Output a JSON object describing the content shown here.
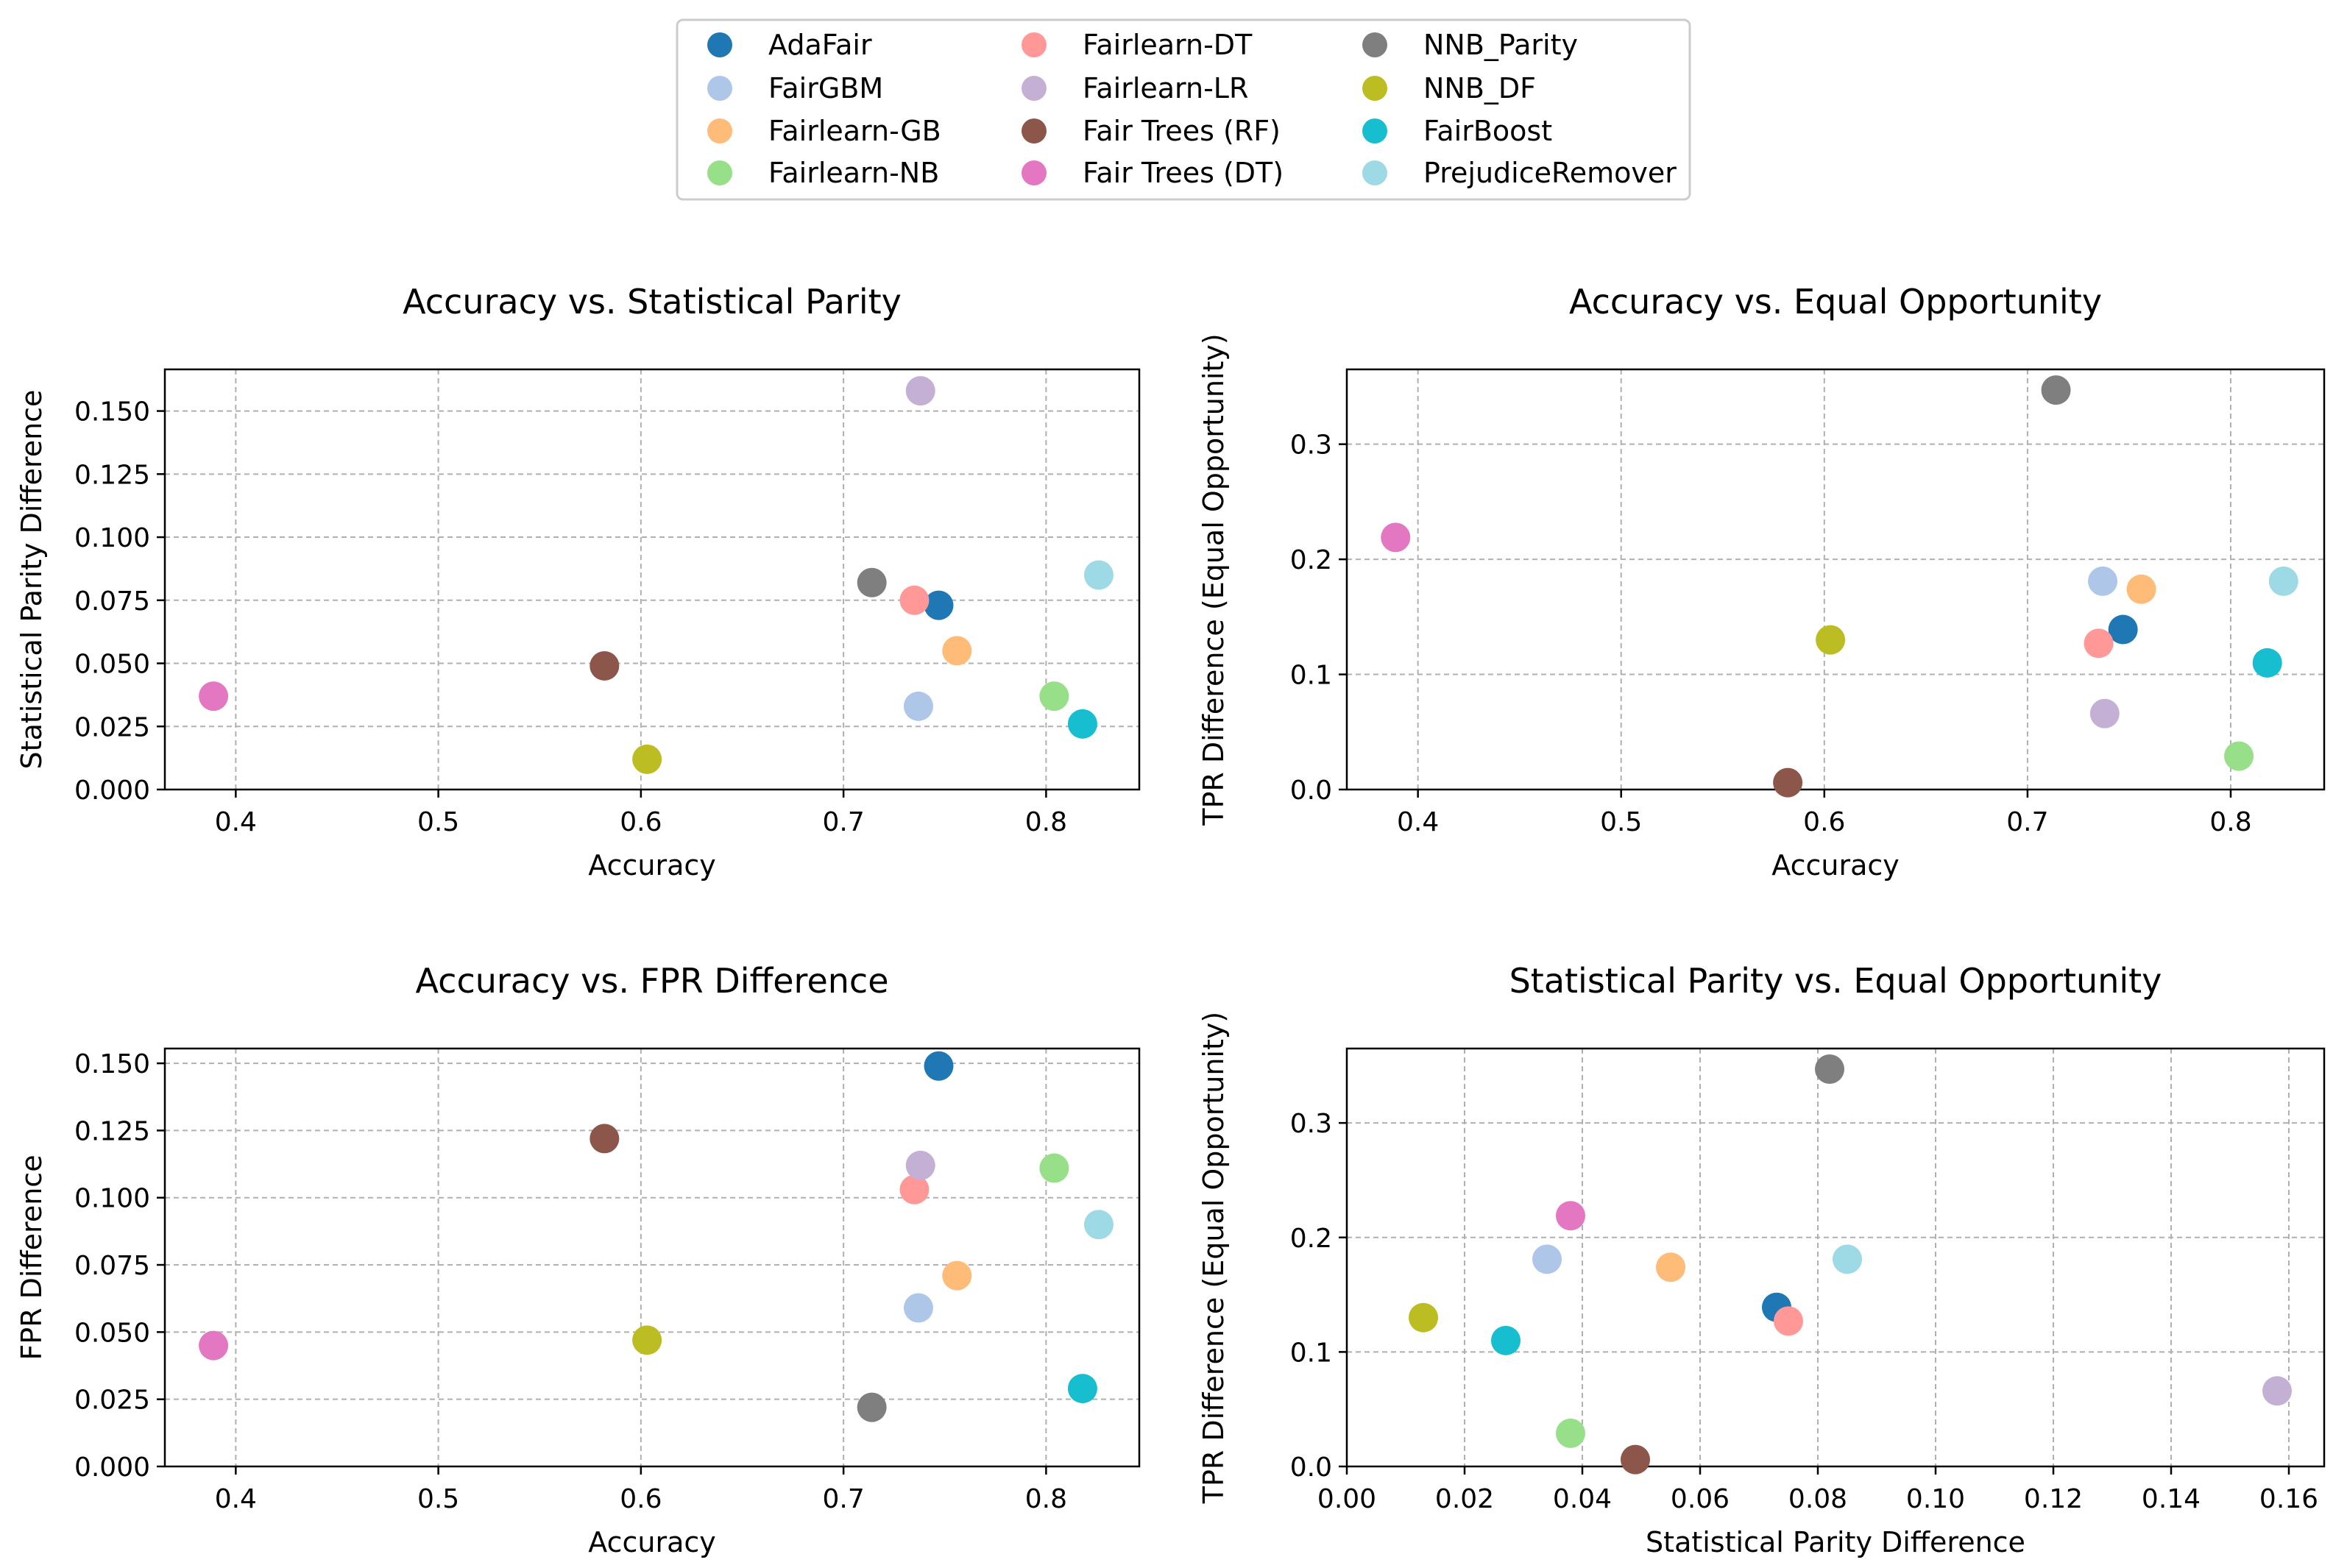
{
  "legend": {
    "entries": [
      {
        "name": "AdaFair",
        "color": "#1f77b4"
      },
      {
        "name": "FairGBM",
        "color": "#aec7e8"
      },
      {
        "name": "Fairlearn-GB",
        "color": "#ffbb78"
      },
      {
        "name": "Fairlearn-NB",
        "color": "#98df8a"
      },
      {
        "name": "Fairlearn-DT",
        "color": "#ff9896"
      },
      {
        "name": "Fairlearn-LR",
        "color": "#c5b0d5"
      },
      {
        "name": "Fair Trees (RF)",
        "color": "#8c564b"
      },
      {
        "name": "Fair Trees (DT)",
        "color": "#e377c2"
      },
      {
        "name": "NNB_Parity",
        "color": "#7f7f7f"
      },
      {
        "name": "NNB_DF",
        "color": "#bcbd22"
      },
      {
        "name": "FairBoost",
        "color": "#17becf"
      },
      {
        "name": "PrejudiceRemover",
        "color": "#9edae5"
      }
    ]
  },
  "chart_data": [
    {
      "type": "scatter",
      "title": "Accuracy vs. Statistical Parity",
      "xlabel": "Accuracy",
      "ylabel": "Statistical Parity Difference",
      "xlim": [
        0.365,
        0.846
      ],
      "ylim": [
        0.0,
        0.1665
      ],
      "xticks": [
        "0.4",
        "0.5",
        "0.6",
        "0.7",
        "0.8"
      ],
      "yticks": [
        "0.000",
        "0.025",
        "0.050",
        "0.075",
        "0.100",
        "0.125",
        "0.150"
      ],
      "grid": true,
      "points": [
        {
          "series": "AdaFair",
          "x": 0.747,
          "y": 0.073
        },
        {
          "series": "FairGBM",
          "x": 0.737,
          "y": 0.033
        },
        {
          "series": "Fairlearn-GB",
          "x": 0.756,
          "y": 0.055
        },
        {
          "series": "Fairlearn-NB",
          "x": 0.804,
          "y": 0.037
        },
        {
          "series": "Fairlearn-DT",
          "x": 0.735,
          "y": 0.075
        },
        {
          "series": "Fairlearn-LR",
          "x": 0.738,
          "y": 0.158
        },
        {
          "series": "Fair Trees (RF)",
          "x": 0.582,
          "y": 0.049
        },
        {
          "series": "Fair Trees (DT)",
          "x": 0.389,
          "y": 0.037
        },
        {
          "series": "NNB_Parity",
          "x": 0.714,
          "y": 0.082
        },
        {
          "series": "NNB_DF",
          "x": 0.603,
          "y": 0.012
        },
        {
          "series": "FairBoost",
          "x": 0.818,
          "y": 0.026
        },
        {
          "series": "PrejudiceRemover",
          "x": 0.826,
          "y": 0.085
        }
      ]
    },
    {
      "type": "scatter",
      "title": "Accuracy vs. Equal Opportunity",
      "xlabel": "Accuracy",
      "ylabel": "TPR Difference (Equal Opportunity)",
      "xlim": [
        0.365,
        0.846
      ],
      "ylim": [
        0.0,
        0.365
      ],
      "xticks": [
        "0.4",
        "0.5",
        "0.6",
        "0.7",
        "0.8"
      ],
      "yticks": [
        "0.0",
        "0.1",
        "0.2",
        "0.3"
      ],
      "grid": true,
      "points": [
        {
          "series": "AdaFair",
          "x": 0.747,
          "y": 0.139
        },
        {
          "series": "FairGBM",
          "x": 0.737,
          "y": 0.181
        },
        {
          "series": "Fairlearn-GB",
          "x": 0.756,
          "y": 0.174
        },
        {
          "series": "Fairlearn-NB",
          "x": 0.804,
          "y": 0.029
        },
        {
          "series": "Fairlearn-DT",
          "x": 0.735,
          "y": 0.127
        },
        {
          "series": "Fairlearn-LR",
          "x": 0.738,
          "y": 0.066
        },
        {
          "series": "Fair Trees (RF)",
          "x": 0.582,
          "y": 0.006
        },
        {
          "series": "Fair Trees (DT)",
          "x": 0.389,
          "y": 0.219
        },
        {
          "series": "NNB_Parity",
          "x": 0.714,
          "y": 0.347
        },
        {
          "series": "NNB_DF",
          "x": 0.603,
          "y": 0.13
        },
        {
          "series": "FairBoost",
          "x": 0.818,
          "y": 0.11
        },
        {
          "series": "PrejudiceRemover",
          "x": 0.826,
          "y": 0.181
        }
      ]
    },
    {
      "type": "scatter",
      "title": "Accuracy vs. FPR Difference",
      "xlabel": "Accuracy",
      "ylabel": "FPR Difference",
      "xlim": [
        0.365,
        0.846
      ],
      "ylim": [
        0.0,
        0.1555
      ],
      "xticks": [
        "0.4",
        "0.5",
        "0.6",
        "0.7",
        "0.8"
      ],
      "yticks": [
        "0.000",
        "0.025",
        "0.050",
        "0.075",
        "0.100",
        "0.125",
        "0.150"
      ],
      "grid": true,
      "points": [
        {
          "series": "AdaFair",
          "x": 0.747,
          "y": 0.149
        },
        {
          "series": "FairGBM",
          "x": 0.737,
          "y": 0.059
        },
        {
          "series": "Fairlearn-GB",
          "x": 0.756,
          "y": 0.071
        },
        {
          "series": "Fairlearn-NB",
          "x": 0.804,
          "y": 0.111
        },
        {
          "series": "Fairlearn-DT",
          "x": 0.735,
          "y": 0.103
        },
        {
          "series": "Fairlearn-LR",
          "x": 0.738,
          "y": 0.112
        },
        {
          "series": "Fair Trees (RF)",
          "x": 0.582,
          "y": 0.122
        },
        {
          "series": "Fair Trees (DT)",
          "x": 0.389,
          "y": 0.045
        },
        {
          "series": "NNB_Parity",
          "x": 0.714,
          "y": 0.022
        },
        {
          "series": "NNB_DF",
          "x": 0.603,
          "y": 0.047
        },
        {
          "series": "FairBoost",
          "x": 0.818,
          "y": 0.029
        },
        {
          "series": "PrejudiceRemover",
          "x": 0.826,
          "y": 0.09
        }
      ]
    },
    {
      "type": "scatter",
      "title": "Statistical Parity vs. Equal Opportunity",
      "xlabel": "Statistical Parity Difference",
      "ylabel": "TPR Difference (Equal Opportunity)",
      "xlim": [
        0.0,
        0.166
      ],
      "ylim": [
        0.0,
        0.365
      ],
      "xticks": [
        "0.00",
        "0.02",
        "0.04",
        "0.06",
        "0.08",
        "0.10",
        "0.12",
        "0.14",
        "0.16"
      ],
      "yticks": [
        "0.0",
        "0.1",
        "0.2",
        "0.3"
      ],
      "grid": true,
      "points": [
        {
          "series": "AdaFair",
          "x": 0.073,
          "y": 0.139
        },
        {
          "series": "FairGBM",
          "x": 0.034,
          "y": 0.181
        },
        {
          "series": "Fairlearn-GB",
          "x": 0.055,
          "y": 0.174
        },
        {
          "series": "Fairlearn-NB",
          "x": 0.038,
          "y": 0.029
        },
        {
          "series": "Fairlearn-DT",
          "x": 0.075,
          "y": 0.127
        },
        {
          "series": "Fairlearn-LR",
          "x": 0.158,
          "y": 0.066
        },
        {
          "series": "Fair Trees (RF)",
          "x": 0.049,
          "y": 0.006
        },
        {
          "series": "Fair Trees (DT)",
          "x": 0.038,
          "y": 0.219
        },
        {
          "series": "NNB_Parity",
          "x": 0.082,
          "y": 0.347
        },
        {
          "series": "NNB_DF",
          "x": 0.013,
          "y": 0.13
        },
        {
          "series": "FairBoost",
          "x": 0.027,
          "y": 0.11
        },
        {
          "series": "PrejudiceRemover",
          "x": 0.085,
          "y": 0.181
        }
      ]
    }
  ]
}
